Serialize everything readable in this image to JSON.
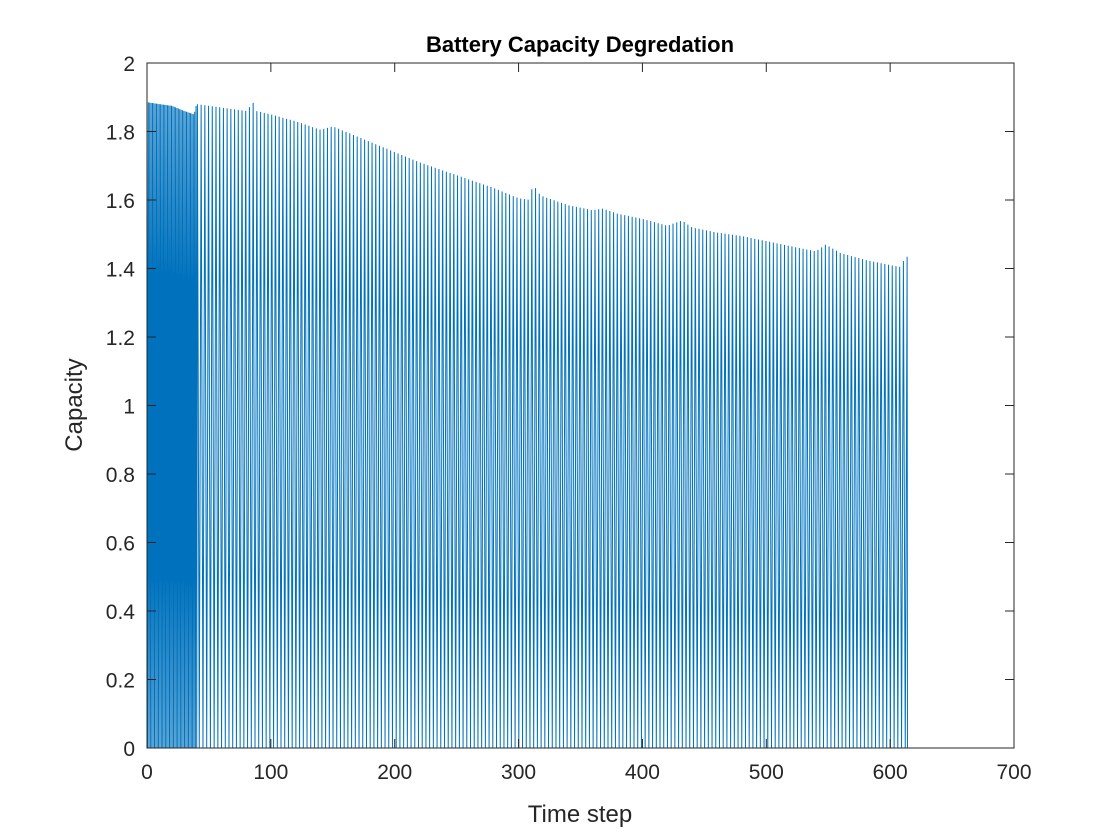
{
  "chart_data": {
    "type": "line",
    "title": "Battery Capacity Degredation",
    "xlabel": "Time step",
    "ylabel": "Capacity",
    "xlim": [
      0,
      700
    ],
    "ylim": [
      0,
      2
    ],
    "xticks": [
      0,
      100,
      200,
      300,
      400,
      500,
      600,
      700
    ],
    "xtick_labels": [
      "0",
      "100",
      "200",
      "300",
      "400",
      "500",
      "600",
      "700"
    ],
    "yticks": [
      0,
      0.2,
      0.4,
      0.6,
      0.8,
      1,
      1.2,
      1.4,
      1.6,
      1.8,
      2
    ],
    "ytick_labels": [
      "0",
      "0.2",
      "0.4",
      "0.6",
      "0.8",
      "1",
      "1.2",
      "1.4",
      "1.6",
      "1.8",
      "2"
    ],
    "grid": false,
    "legend": "none",
    "series_color": "#0072BD",
    "x_end": 614,
    "peak_profile": [
      [
        0,
        1.895
      ],
      [
        1,
        1.885
      ],
      [
        10,
        1.88
      ],
      [
        20,
        1.875
      ],
      [
        30,
        1.86
      ],
      [
        38,
        1.85
      ],
      [
        40,
        1.88
      ],
      [
        60,
        1.87
      ],
      [
        80,
        1.86
      ],
      [
        86,
        1.885
      ],
      [
        88,
        1.86
      ],
      [
        100,
        1.85
      ],
      [
        120,
        1.83
      ],
      [
        140,
        1.805
      ],
      [
        150,
        1.815
      ],
      [
        160,
        1.8
      ],
      [
        180,
        1.77
      ],
      [
        200,
        1.74
      ],
      [
        220,
        1.71
      ],
      [
        240,
        1.685
      ],
      [
        260,
        1.66
      ],
      [
        280,
        1.635
      ],
      [
        300,
        1.605
      ],
      [
        310,
        1.6
      ],
      [
        312,
        1.69
      ],
      [
        314,
        1.625
      ],
      [
        320,
        1.61
      ],
      [
        340,
        1.585
      ],
      [
        360,
        1.57
      ],
      [
        368,
        1.575
      ],
      [
        380,
        1.56
      ],
      [
        400,
        1.545
      ],
      [
        420,
        1.525
      ],
      [
        432,
        1.54
      ],
      [
        440,
        1.52
      ],
      [
        460,
        1.505
      ],
      [
        480,
        1.495
      ],
      [
        500,
        1.48
      ],
      [
        520,
        1.465
      ],
      [
        540,
        1.45
      ],
      [
        548,
        1.47
      ],
      [
        560,
        1.445
      ],
      [
        580,
        1.425
      ],
      [
        600,
        1.41
      ],
      [
        608,
        1.405
      ],
      [
        612,
        1.43
      ],
      [
        614,
        1.435
      ]
    ]
  }
}
